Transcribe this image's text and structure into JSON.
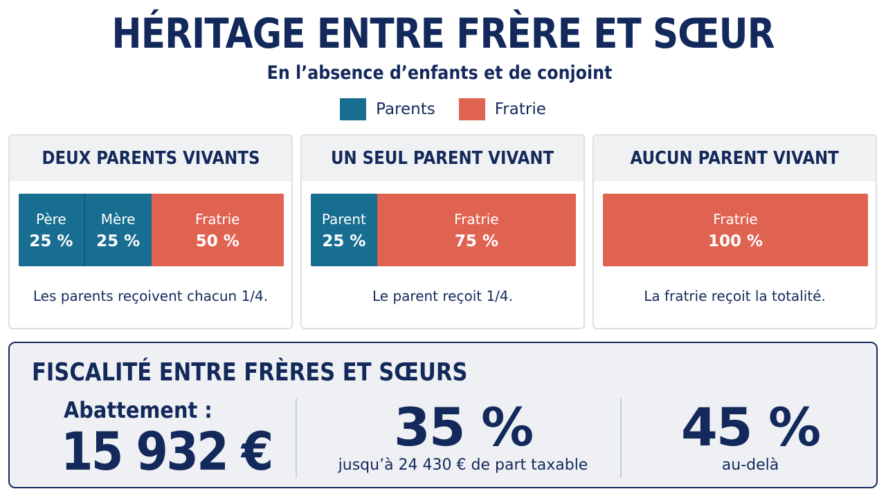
{
  "title": "HÉRITAGE ENTRE FRÈRE ET SŒUR",
  "subtitle": "En l’absence d’enfants et de conjoint",
  "colors": {
    "parents": "#176e90",
    "fratrie": "#e06352",
    "navy": "#13295b"
  },
  "legend": [
    {
      "label": "Parents",
      "color": "#176e90"
    },
    {
      "label": "Fratrie",
      "color": "#e06352"
    }
  ],
  "scenarios": [
    {
      "heading": "DEUX PARENTS VIVANTS",
      "segments": [
        {
          "label": "Père",
          "percent": "25 %",
          "share": 25,
          "group": "parents"
        },
        {
          "label": "Mère",
          "percent": "25 %",
          "share": 25,
          "group": "parents"
        },
        {
          "label": "Fratrie",
          "percent": "50 %",
          "share": 50,
          "group": "fratrie"
        }
      ],
      "note": "Les parents reçoivent chacun 1/4."
    },
    {
      "heading": "UN SEUL PARENT VIVANT",
      "segments": [
        {
          "label": "Parent",
          "percent": "25 %",
          "share": 25,
          "group": "parents"
        },
        {
          "label": "Fratrie",
          "percent": "75 %",
          "share": 75,
          "group": "fratrie"
        }
      ],
      "note": "Le parent reçoit 1/4."
    },
    {
      "heading": "AUCUN PARENT VIVANT",
      "segments": [
        {
          "label": "Fratrie",
          "percent": "100 %",
          "share": 100,
          "group": "fratrie"
        }
      ],
      "note": "La fratrie reçoit la totalité."
    }
  ],
  "fiscal": {
    "title": "FISCALITÉ ENTRE FRÈRES ET SŒURS",
    "abatement_label": "Abattement :",
    "abatement_value": "15 932 €",
    "rate1": "35 %",
    "rate1_note": "jusqu’à 24 430 € de part taxable",
    "rate2": "45 %",
    "rate2_note": "au-delà"
  }
}
